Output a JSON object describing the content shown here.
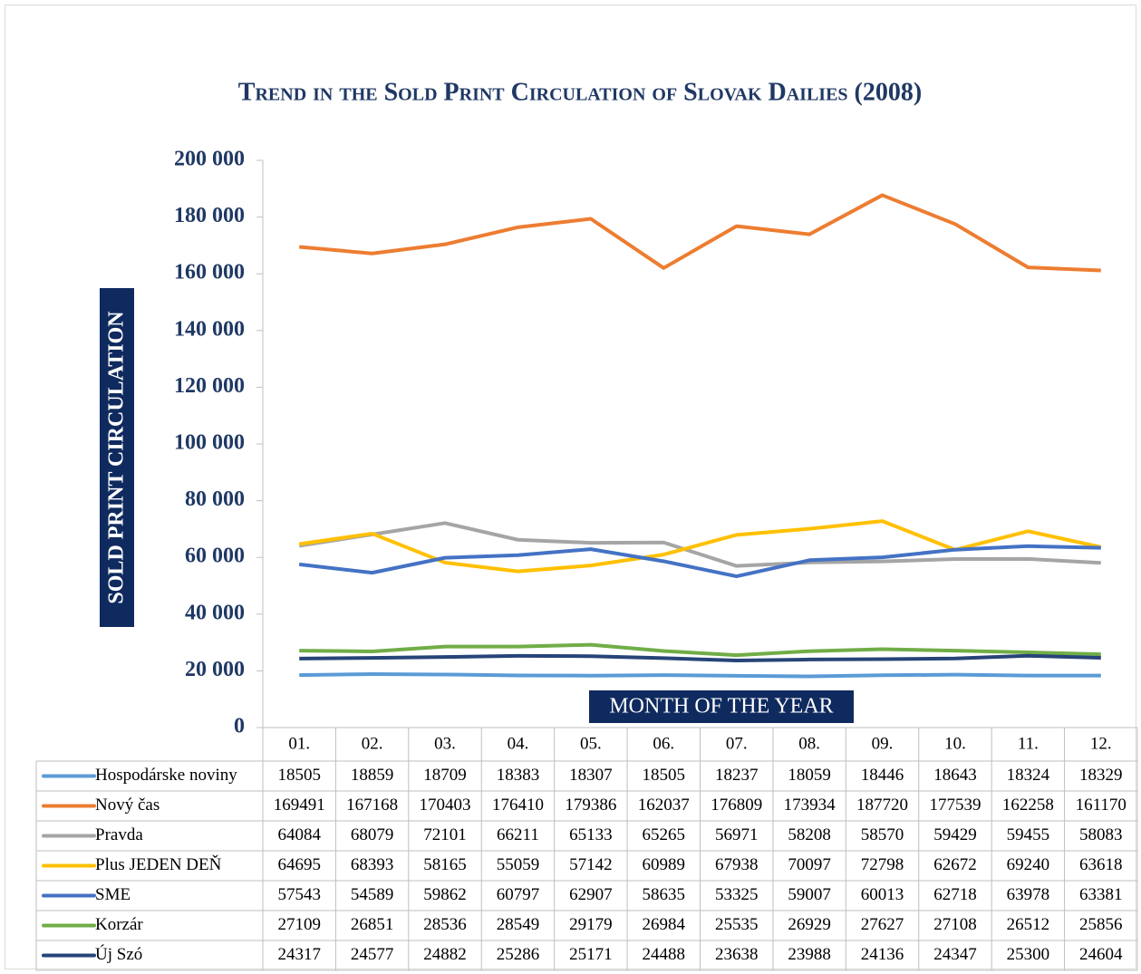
{
  "chart_data": {
    "type": "line",
    "title": "Trend in the Sold Print Circulation of Slovak Dailies (2008)",
    "y_label": "SOLD PRINT CIRCULATION",
    "x_label": "MONTH OF THE YEAR",
    "categories": [
      "01.",
      "02.",
      "03.",
      "04.",
      "05.",
      "06.",
      "07.",
      "08.",
      "09.",
      "10.",
      "11.",
      "12."
    ],
    "ylim": [
      0,
      200000
    ],
    "yticks": [
      0,
      {
        "value": 20000,
        "label": "20 000"
      },
      {
        "value": 40000,
        "label": "40 000"
      },
      {
        "value": 60000,
        "label": "60 000"
      },
      {
        "value": 80000,
        "label": "80 000"
      },
      {
        "value": 100000,
        "label": "100 000"
      },
      {
        "value": 120000,
        "label": "120 000"
      },
      {
        "value": 140000,
        "label": "140 000"
      },
      {
        "value": 160000,
        "label": "160 000"
      },
      {
        "value": 180000,
        "label": "180 000"
      },
      {
        "value": 200000,
        "label": "200 000"
      }
    ],
    "series": [
      {
        "name": "Hospodárske noviny",
        "color": "#5b9bd5",
        "values": [
          18505,
          18859,
          18709,
          18383,
          18307,
          18505,
          18237,
          18059,
          18446,
          18643,
          18324,
          18329
        ]
      },
      {
        "name": "Nový čas",
        "color": "#ed7d31",
        "values": [
          169491,
          167168,
          170403,
          176410,
          179386,
          162037,
          176809,
          173934,
          187720,
          177539,
          162258,
          161170
        ]
      },
      {
        "name": "Pravda",
        "color": "#a5a5a5",
        "values": [
          64084,
          68079,
          72101,
          66211,
          65133,
          65265,
          56971,
          58208,
          58570,
          59429,
          59455,
          58083
        ]
      },
      {
        "name": "Plus JEDEN DEŇ",
        "color": "#ffc000",
        "values": [
          64695,
          68393,
          58165,
          55059,
          57142,
          60989,
          67938,
          70097,
          72798,
          62672,
          69240,
          63618
        ]
      },
      {
        "name": "SME",
        "color": "#4472c4",
        "values": [
          57543,
          54589,
          59862,
          60797,
          62907,
          58635,
          53325,
          59007,
          60013,
          62718,
          63978,
          63381
        ]
      },
      {
        "name": "Korzár",
        "color": "#70ad47",
        "values": [
          27109,
          26851,
          28536,
          28549,
          29179,
          26984,
          25535,
          26929,
          27627,
          27108,
          26512,
          25856
        ]
      },
      {
        "name": "Új Szó",
        "color": "#264478",
        "values": [
          24317,
          24577,
          24882,
          25286,
          25171,
          24488,
          23638,
          23988,
          24136,
          24347,
          25300,
          24604
        ]
      }
    ]
  }
}
